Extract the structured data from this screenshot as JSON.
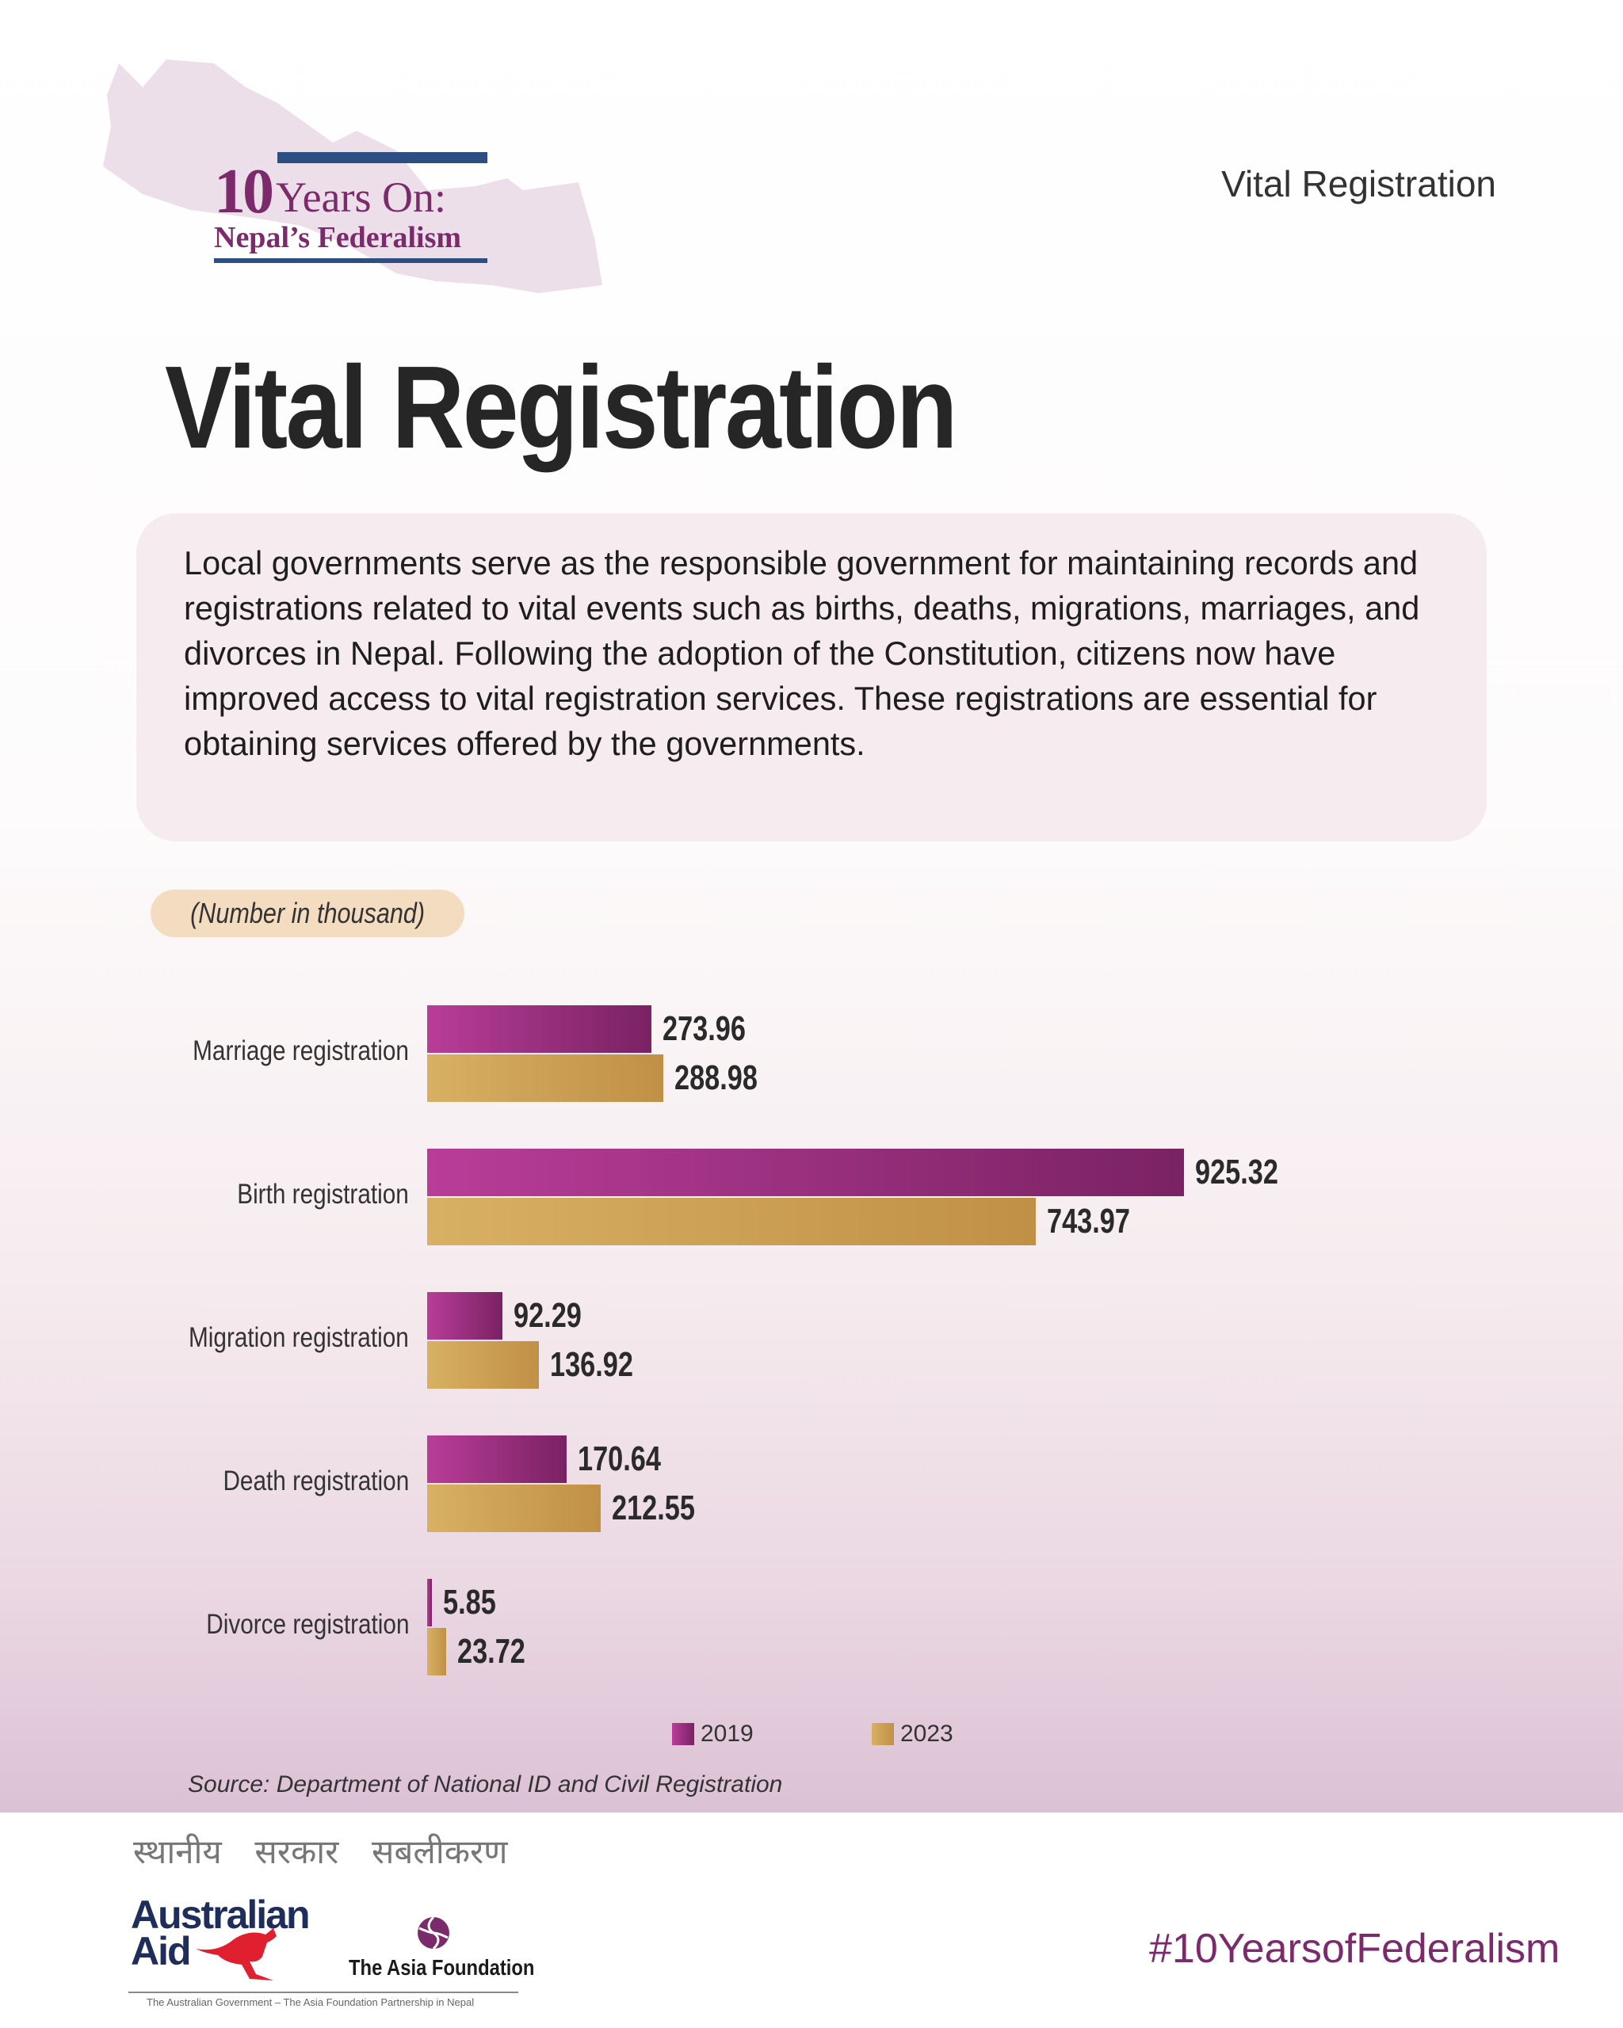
{
  "header": {
    "logo_number": "10",
    "logo_line1": "Years On:",
    "logo_line2": "Nepal’s Federalism",
    "section_label": "Vital Registration"
  },
  "title": "Vital Registration",
  "description": "Local governments serve as the responsible government for maintaining records and registrations related to vital events such as births, deaths, migrations, marriages, and divorces in Nepal. Following the adoption of the Constitution, citizens now have improved access to vital registration services. These registrations are essential for obtaining services offered by the governments.",
  "unit_note": "(Number in thousand)",
  "chart_data": {
    "type": "bar",
    "orientation": "horizontal",
    "title": "Vital Registration",
    "unit": "(Number in thousand)",
    "categories": [
      "Marriage registration",
      "Birth registration",
      "Migration registration",
      "Death registration",
      "Divorce registration"
    ],
    "series": [
      {
        "name": "2019",
        "color": "#a2307f",
        "values": [
          273.96,
          925.32,
          92.29,
          170.64,
          5.85
        ],
        "labels": [
          "273.96",
          "925.32",
          "92.29",
          "170.64",
          "5.85"
        ]
      },
      {
        "name": "2023",
        "color": "#cca152",
        "values": [
          288.98,
          743.97,
          136.92,
          212.55,
          23.72
        ],
        "labels": [
          "288.98",
          "743.97",
          "136.92",
          "212.55",
          "23.72"
        ]
      }
    ],
    "xlim": [
      0,
      1000
    ],
    "grid": false,
    "legend_position": "bottom-center"
  },
  "source": "Source: Department of National ID and Civil Registration",
  "footer": {
    "tagline_nepali": "स्थानीय सरकार सबलीकरण",
    "aus_aid_line1": "Australian",
    "aus_aid_line2": "Aid",
    "asia_foundation": "The Asia Foundation",
    "partnership": "The Australian Government – The Asia Foundation Partnership in Nepal",
    "hashtag": "#10YearsofFederalism"
  }
}
